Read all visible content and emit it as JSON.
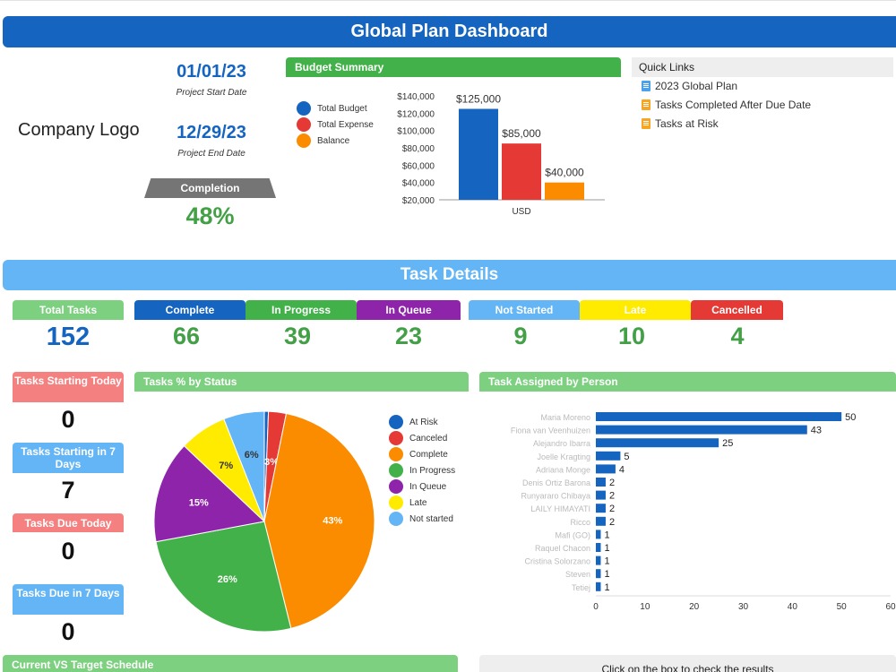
{
  "header": {
    "title": "Global Plan Dashboard"
  },
  "logo_text": "Company Logo",
  "dates": {
    "start": {
      "value": "01/01/23",
      "caption": "Project Start Date"
    },
    "end": {
      "value": "12/29/23",
      "caption": "Project End Date"
    }
  },
  "completion": {
    "label": "Completion",
    "value": "48%",
    "fraction": 0.48
  },
  "budget": {
    "title": "Budget Summary",
    "legend": [
      {
        "label": "Total Budget",
        "color": "#1565c0"
      },
      {
        "label": "Total Expense",
        "color": "#e53935"
      },
      {
        "label": "Balance",
        "color": "#fb8c00"
      }
    ]
  },
  "quick_links": {
    "title": "Quick Links",
    "items": [
      {
        "label": "2023 Global Plan",
        "icon": "document-icon",
        "color": "#4aa3e8"
      },
      {
        "label": "Tasks Completed After Due Date",
        "icon": "sheet-icon",
        "color": "#f6a623"
      },
      {
        "label": "Tasks at Risk",
        "icon": "sheet-icon",
        "color": "#f6a623"
      }
    ]
  },
  "task_details": {
    "title": "Task Details",
    "stats": [
      {
        "label": "Total Tasks",
        "value": "152",
        "color": "#7cd07f",
        "value_color": "#1565c0"
      },
      {
        "label": "Complete",
        "value": "66",
        "color": "#1565c0",
        "value_color": "#43a047"
      },
      {
        "label": "In Progress",
        "value": "39",
        "color": "#43b14a",
        "value_color": "#43a047"
      },
      {
        "label": "In Queue",
        "value": "23",
        "color": "#8e24aa",
        "value_color": "#43a047"
      },
      {
        "label": "Not Started",
        "value": "9",
        "color": "#64b5f6",
        "value_color": "#43a047"
      },
      {
        "label": "Late",
        "value": "10",
        "color": "#ffeb00",
        "value_color": "#43a047"
      },
      {
        "label": "Cancelled",
        "value": "4",
        "color": "#e53935",
        "value_color": "#43a047"
      }
    ],
    "side_boxes": [
      {
        "label": "Tasks Starting Today",
        "value": "0",
        "color": "#f48080"
      },
      {
        "label": "Tasks Starting in 7 Days",
        "value": "7",
        "color": "#64b5f6"
      },
      {
        "label": "Tasks Due Today",
        "value": "0",
        "color": "#f48080"
      },
      {
        "label": "Tasks Due in 7 Days",
        "value": "0",
        "color": "#64b5f6"
      }
    ]
  },
  "status_pie_title": "Tasks % by Status",
  "person_chart_title": "Task Assigned by Person",
  "bottom": {
    "left_title": "Current VS Target Schedule",
    "right_text": "Click on the box to check the results"
  },
  "chart_data": [
    {
      "type": "bar",
      "categories": [
        "Total Budget",
        "Total Expense",
        "Balance"
      ],
      "values": [
        125000,
        85000,
        40000
      ],
      "value_labels": [
        "$125,000",
        "$85,000",
        "$40,000"
      ],
      "colors": [
        "#1565c0",
        "#e53935",
        "#fb8c00"
      ],
      "xlabel": "USD",
      "ylim": [
        20000,
        140000
      ],
      "yticks": [
        "$20,000",
        "$40,000",
        "$60,000",
        "$80,000",
        "$100,000",
        "$120,000",
        "$140,000"
      ]
    },
    {
      "type": "pie",
      "slices": [
        {
          "label": "At Risk",
          "value": 0.6,
          "color": "#1565c0",
          "text": ""
        },
        {
          "label": "Canceled",
          "value": 2.6,
          "color": "#e53935",
          "text": "3%"
        },
        {
          "label": "Complete",
          "value": 43,
          "color": "#fb8c00",
          "text": "43%"
        },
        {
          "label": "In Progress",
          "value": 26,
          "color": "#43b14a",
          "text": "26%"
        },
        {
          "label": "In Queue",
          "value": 15,
          "color": "#8e24aa",
          "text": "15%"
        },
        {
          "label": "Late",
          "value": 7,
          "color": "#ffeb00",
          "text": "7%"
        },
        {
          "label": "Not started",
          "value": 6,
          "color": "#64b5f6",
          "text": "6%"
        }
      ]
    },
    {
      "type": "bar",
      "orientation": "horizontal",
      "categories": [
        "Maria Moreno",
        "Fiona van Veenhuizen",
        "Alejandro Ibarra",
        "Joelle Kragting",
        "Adriana Monge",
        "Denis Ortiz Barona",
        "Runyararo Chibaya",
        "LAILY HIMAYATI",
        "Ricco",
        "Mafi (GO)",
        "Raquel Chacon",
        "Cristina Solorzano",
        "Steven",
        "Tetiej"
      ],
      "values": [
        50,
        43,
        25,
        5,
        4,
        2,
        2,
        2,
        2,
        1,
        1,
        1,
        1,
        1
      ],
      "color": "#1565c0",
      "xlim": [
        0,
        60
      ],
      "xticks": [
        0,
        10,
        20,
        30,
        40,
        50,
        60
      ]
    }
  ]
}
